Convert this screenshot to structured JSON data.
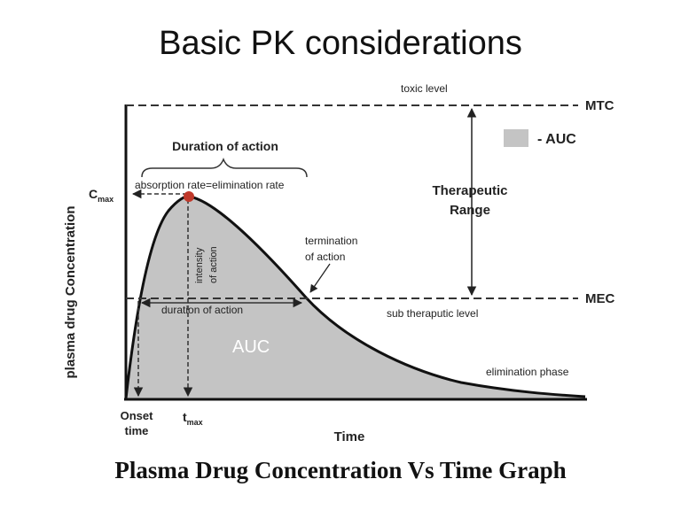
{
  "slide": {
    "title": "Basic PK considerations",
    "caption": "Plasma Drug Concentration Vs Time Graph"
  },
  "diagram": {
    "y_axis_label": "plasma drug Concentration",
    "x_axis_label": "Time",
    "cmax_label": "C",
    "cmax_sub": "max",
    "tmax_label": "t",
    "tmax_sub": "max",
    "onset_label_1": "Onset",
    "onset_label_2": "time",
    "mtc_label": "MTC",
    "mec_label": "MEC",
    "toxic_level": "toxic level",
    "sub_therapeutic": "sub theraputic level",
    "therapeutic_1": "Therapeutic",
    "therapeutic_2": "Range",
    "legend_auc": "- AUC",
    "duration_top": "Duration of action",
    "absorption_eq": "absorption rate=elimination rate",
    "intensity_1": "intensity",
    "intensity_2": "of action",
    "termination_1": "termination",
    "termination_2": "of action",
    "duration_mid": "duration of action",
    "auc_label": "AUC",
    "elimination_phase": "elimination phase"
  },
  "colors": {
    "auc_fill": "#c4c4c4",
    "curve": "#111111",
    "cmax_marker": "#c0392b"
  }
}
